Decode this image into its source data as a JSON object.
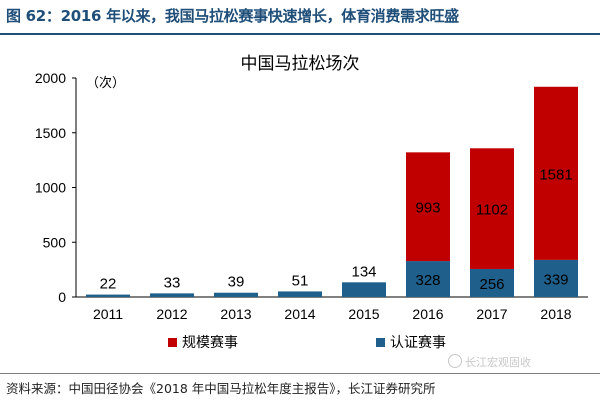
{
  "figure_title": "图 62：2016 年以来，我国马拉松赛事快速增长，体育消费需求旺盛",
  "source_text": "资料来源：中国田径协会《2018 年中国马拉松年度主报告》，长江证券研究所",
  "watermark_text": "长江宏观固收",
  "colors": {
    "series1": "#c00000",
    "series2": "#1f5f8b",
    "title": "#1f4e79"
  },
  "chart_data": {
    "type": "bar",
    "stacked": true,
    "title": "中国马拉松场次",
    "unit_label": "（次）",
    "categories": [
      "2011",
      "2012",
      "2013",
      "2014",
      "2015",
      "2016",
      "2017",
      "2018"
    ],
    "series": [
      {
        "name": "认证赛事",
        "values": [
          22,
          33,
          39,
          51,
          134,
          328,
          256,
          339
        ]
      },
      {
        "name": "规模赛事",
        "values": [
          0,
          0,
          0,
          0,
          0,
          993,
          1102,
          1581
        ]
      }
    ],
    "data_labels": {
      "认证赛事": [
        "22",
        "33",
        "39",
        "51",
        "134",
        "328",
        "256",
        "339"
      ],
      "规模赛事": [
        "",
        "",
        "",
        "",
        "",
        "993",
        "1102",
        "1581"
      ]
    },
    "ylim": [
      0,
      2000
    ],
    "yticks": [
      "0",
      "500",
      "1000",
      "1500",
      "2000"
    ],
    "grid": false,
    "legend": "bottom"
  }
}
